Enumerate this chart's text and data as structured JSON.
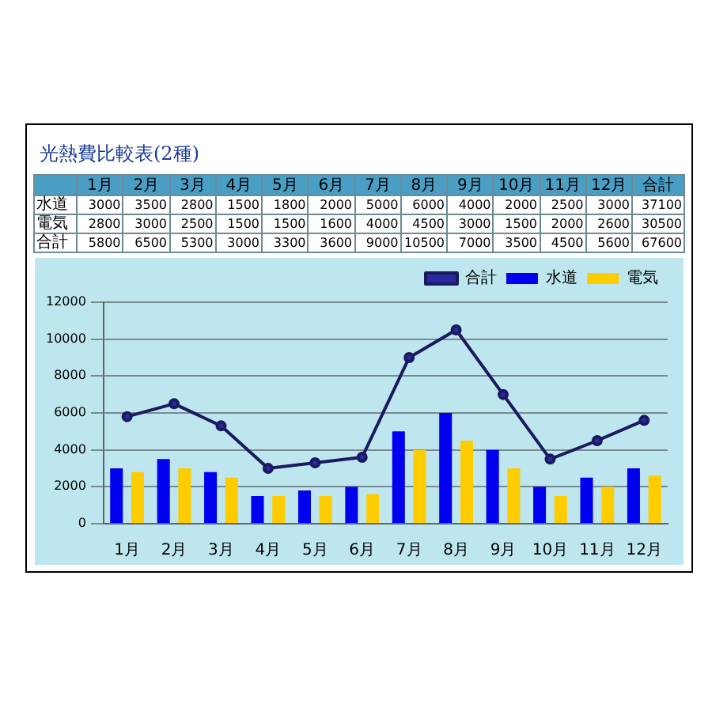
{
  "chart_data": [
    {
      "type": "heatmap",
      "title": "光熱費比較表(2種)",
      "categories": [
        "1月",
        "2月",
        "3月",
        "4月",
        "5月",
        "6月",
        "7月",
        "8月",
        "9月",
        "10月",
        "11月",
        "12月",
        "合計"
      ],
      "y_categories": [
        "水道",
        "電気",
        "合計"
      ],
      "cells": [
        [
          3000,
          3500,
          2800,
          1500,
          1800,
          2000,
          5000,
          6000,
          4000,
          2000,
          2500,
          3000,
          37100
        ],
        [
          2800,
          3000,
          2500,
          1500,
          1500,
          1600,
          4000,
          4500,
          3000,
          1500,
          2000,
          2600,
          30500
        ],
        [
          5800,
          6500,
          5300,
          3000,
          3300,
          3600,
          9000,
          10500,
          7000,
          3500,
          4500,
          5600,
          67600
        ]
      ],
      "data_labels": true
    },
    {
      "type": "bar",
      "categories": [
        "1月",
        "2月",
        "3月",
        "4月",
        "5月",
        "6月",
        "7月",
        "8月",
        "9月",
        "10月",
        "11月",
        "12月"
      ],
      "series": [
        {
          "name": "水道",
          "color": "#0000ee",
          "values": [
            3000,
            3500,
            2800,
            1500,
            1800,
            2000,
            5000,
            6000,
            4000,
            2000,
            2500,
            3000
          ]
        },
        {
          "name": "電気",
          "color": "#ffcc00",
          "values": [
            2800,
            3000,
            2500,
            1500,
            1500,
            1600,
            4000,
            4500,
            3000,
            1500,
            2000,
            2600
          ]
        },
        {
          "name": "合計",
          "type": "line",
          "color": "#1a1a5e",
          "values": [
            5800,
            6500,
            5300,
            3000,
            3300,
            3600,
            9000,
            10500,
            7000,
            3500,
            4500,
            5600
          ]
        }
      ],
      "ylim": [
        0,
        12000
      ],
      "yticks": [
        0,
        2000,
        4000,
        6000,
        8000,
        10000,
        12000
      ],
      "grid": "y",
      "legend": "top right",
      "marker": "circle"
    }
  ]
}
